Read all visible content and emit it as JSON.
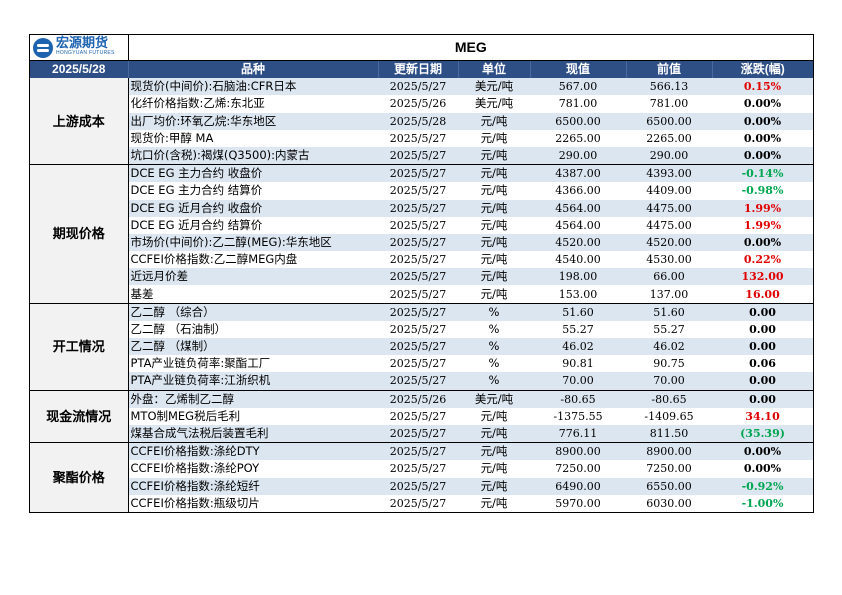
{
  "header": {
    "logo_cn": "宏源期货",
    "logo_en": "HONGYUAN FUTURES",
    "title": "MEG",
    "date": "2025/5/28",
    "columns": [
      "品种",
      "更新日期",
      "单位",
      "现值",
      "前值",
      "涨跌(幅)"
    ]
  },
  "colors": {
    "header_bg": "#2e4f86",
    "stripe": "#dce6f1",
    "up": "#e00000",
    "down": "#00a650"
  },
  "groups": [
    {
      "label": "上游成本",
      "rows": [
        {
          "name": "现货价(中间价):石脑油:CFR日本",
          "date": "2025/5/27",
          "unit": "美元/吨",
          "cur": "567.00",
          "prev": "566.13",
          "chg": "0.15%",
          "dir": "red"
        },
        {
          "name": "化纤价格指数:乙烯:东北亚",
          "date": "2025/5/26",
          "unit": "美元/吨",
          "cur": "781.00",
          "prev": "781.00",
          "chg": "0.00%",
          "dir": "black"
        },
        {
          "name": "出厂均价:环氧乙烷:华东地区",
          "date": "2025/5/28",
          "unit": "元/吨",
          "cur": "6500.00",
          "prev": "6500.00",
          "chg": "0.00%",
          "dir": "black"
        },
        {
          "name": "现货价:甲醇 MA",
          "date": "2025/5/27",
          "unit": "元/吨",
          "cur": "2265.00",
          "prev": "2265.00",
          "chg": "0.00%",
          "dir": "black"
        },
        {
          "name": "坑口价(含税):褐煤(Q3500):内蒙古",
          "date": "2025/5/27",
          "unit": "元/吨",
          "cur": "290.00",
          "prev": "290.00",
          "chg": "0.00%",
          "dir": "black"
        }
      ]
    },
    {
      "label": "期现价格",
      "rows": [
        {
          "name": "DCE EG 主力合约 收盘价",
          "date": "2025/5/27",
          "unit": "元/吨",
          "cur": "4387.00",
          "prev": "4393.00",
          "chg": "-0.14%",
          "dir": "green"
        },
        {
          "name": "DCE EG 主力合约 结算价",
          "date": "2025/5/27",
          "unit": "元/吨",
          "cur": "4366.00",
          "prev": "4409.00",
          "chg": "-0.98%",
          "dir": "green"
        },
        {
          "name": "DCE EG 近月合约 收盘价",
          "date": "2025/5/27",
          "unit": "元/吨",
          "cur": "4564.00",
          "prev": "4475.00",
          "chg": "1.99%",
          "dir": "red"
        },
        {
          "name": "DCE EG 近月合约 结算价",
          "date": "2025/5/27",
          "unit": "元/吨",
          "cur": "4564.00",
          "prev": "4475.00",
          "chg": "1.99%",
          "dir": "red"
        },
        {
          "name": "市场价(中间价):乙二醇(MEG):华东地区",
          "date": "2025/5/27",
          "unit": "元/吨",
          "cur": "4520.00",
          "prev": "4520.00",
          "chg": "0.00%",
          "dir": "black"
        },
        {
          "name": "CCFEI价格指数:乙二醇MEG内盘",
          "date": "2025/5/27",
          "unit": "元/吨",
          "cur": "4540.00",
          "prev": "4530.00",
          "chg": "0.22%",
          "dir": "red"
        },
        {
          "name": "近远月价差",
          "date": "2025/5/27",
          "unit": "元/吨",
          "cur": "198.00",
          "prev": "66.00",
          "chg": "132.00",
          "dir": "red"
        },
        {
          "name": "基差",
          "date": "2025/5/27",
          "unit": "元/吨",
          "cur": "153.00",
          "prev": "137.00",
          "chg": "16.00",
          "dir": "red"
        }
      ]
    },
    {
      "label": "开工情况",
      "rows": [
        {
          "name": "乙二醇 （综合）",
          "date": "2025/5/27",
          "unit": "%",
          "cur": "51.60",
          "prev": "51.60",
          "chg": "0.00",
          "dir": "black"
        },
        {
          "name": "乙二醇 （石油制）",
          "date": "2025/5/27",
          "unit": "%",
          "cur": "55.27",
          "prev": "55.27",
          "chg": "0.00",
          "dir": "black"
        },
        {
          "name": "乙二醇 （煤制）",
          "date": "2025/5/27",
          "unit": "%",
          "cur": "46.02",
          "prev": "46.02",
          "chg": "0.00",
          "dir": "black"
        },
        {
          "name": "PTA产业链负荷率:聚酯工厂",
          "date": "2025/5/27",
          "unit": "%",
          "cur": "90.81",
          "prev": "90.75",
          "chg": "0.06",
          "dir": "black"
        },
        {
          "name": "PTA产业链负荷率:江浙织机",
          "date": "2025/5/27",
          "unit": "%",
          "cur": "70.00",
          "prev": "70.00",
          "chg": "0.00",
          "dir": "black"
        }
      ]
    },
    {
      "label": "现金流情况",
      "rows": [
        {
          "name": "外盘：乙烯制乙二醇",
          "date": "2025/5/26",
          "unit": "美元/吨",
          "cur": "-80.65",
          "prev": "-80.65",
          "chg": "0.00",
          "dir": "black"
        },
        {
          "name": "MTO制MEG税后毛利",
          "date": "2025/5/27",
          "unit": "元/吨",
          "cur": "-1375.55",
          "prev": "-1409.65",
          "chg": "34.10",
          "dir": "red"
        },
        {
          "name": "煤基合成气法税后装置毛利",
          "date": "2025/5/27",
          "unit": "元/吨",
          "cur": "776.11",
          "prev": "811.50",
          "chg": "(35.39)",
          "dir": "green"
        }
      ]
    },
    {
      "label": "聚酯价格",
      "rows": [
        {
          "name": "CCFEI价格指数:涤纶DTY",
          "date": "2025/5/27",
          "unit": "元/吨",
          "cur": "8900.00",
          "prev": "8900.00",
          "chg": "0.00%",
          "dir": "black"
        },
        {
          "name": "CCFEI价格指数:涤纶POY",
          "date": "2025/5/27",
          "unit": "元/吨",
          "cur": "7250.00",
          "prev": "7250.00",
          "chg": "0.00%",
          "dir": "black"
        },
        {
          "name": "CCFEI价格指数:涤纶短纤",
          "date": "2025/5/27",
          "unit": "元/吨",
          "cur": "6490.00",
          "prev": "6550.00",
          "chg": "-0.92%",
          "dir": "green"
        },
        {
          "name": "CCFEI价格指数:瓶级切片",
          "date": "2025/5/27",
          "unit": "元/吨",
          "cur": "5970.00",
          "prev": "6030.00",
          "chg": "-1.00%",
          "dir": "green"
        }
      ]
    }
  ]
}
